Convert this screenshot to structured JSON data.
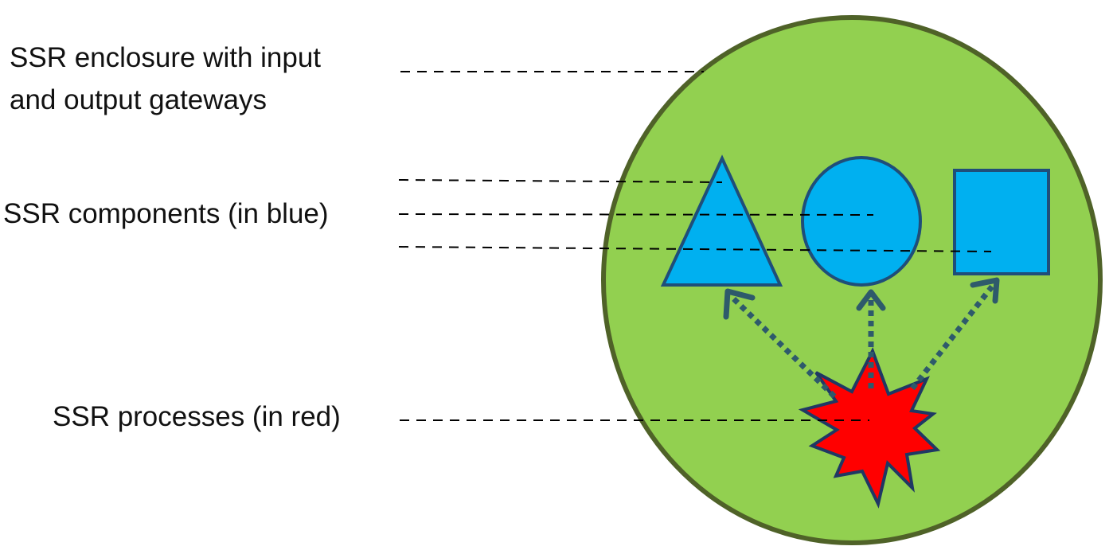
{
  "labels": {
    "enclosure_line1": "SSR enclosure with input",
    "enclosure_line2": "and output gateways",
    "components": "SSR components (in blue)",
    "processes": "SSR processes (in red)"
  },
  "colors": {
    "enclosure_fill": "#92d050",
    "enclosure_stroke": "#4f6228",
    "component_fill": "#00b0f0",
    "component_stroke": "#1f4e79",
    "process_fill": "#ff0000",
    "process_stroke": "#1f3864",
    "arrow": "#2e5a6b",
    "leader_line": "#000000"
  },
  "icons": {
    "components": [
      "triangle-icon",
      "circle-icon",
      "square-icon"
    ],
    "process": "starburst-icon"
  }
}
